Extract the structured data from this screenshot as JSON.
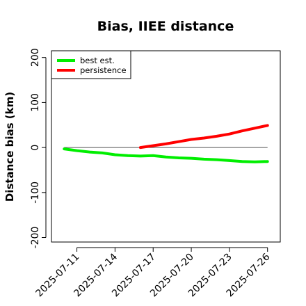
{
  "chart_data": {
    "type": "line",
    "title": "Bias, IIEE distance",
    "xlabel": "",
    "ylabel": "Distance bias (km)",
    "xlim": [
      "2025-07-09",
      "2025-07-27"
    ],
    "ylim": [
      -210,
      215
    ],
    "x_ticks": [
      "2025-07-11",
      "2025-07-14",
      "2025-07-17",
      "2025-07-20",
      "2025-07-23",
      "2025-07-26"
    ],
    "y_ticks": [
      -200,
      -100,
      0,
      100,
      200
    ],
    "reference_line": 0,
    "legend_position": "top-left",
    "series": [
      {
        "name": "best est.",
        "color": "#00ee00",
        "points": [
          [
            "2025-07-10",
            -3
          ],
          [
            "2025-07-11",
            -7
          ],
          [
            "2025-07-12",
            -10
          ],
          [
            "2025-07-13",
            -12
          ],
          [
            "2025-07-14",
            -16
          ],
          [
            "2025-07-15",
            -18
          ],
          [
            "2025-07-16",
            -19
          ],
          [
            "2025-07-17",
            -18
          ],
          [
            "2025-07-18",
            -21
          ],
          [
            "2025-07-19",
            -23
          ],
          [
            "2025-07-20",
            -24
          ],
          [
            "2025-07-21",
            -26
          ],
          [
            "2025-07-22",
            -27
          ],
          [
            "2025-07-23",
            -29
          ],
          [
            "2025-07-24",
            -31
          ],
          [
            "2025-07-25",
            -32
          ],
          [
            "2025-07-26",
            -31
          ]
        ]
      },
      {
        "name": "persistence",
        "color": "#ff0000",
        "points": [
          [
            "2025-07-16",
            0
          ],
          [
            "2025-07-17",
            4
          ],
          [
            "2025-07-18",
            8
          ],
          [
            "2025-07-19",
            13
          ],
          [
            "2025-07-20",
            18
          ],
          [
            "2025-07-21",
            21
          ],
          [
            "2025-07-22",
            25
          ],
          [
            "2025-07-23",
            30
          ],
          [
            "2025-07-24",
            37
          ],
          [
            "2025-07-25",
            43
          ],
          [
            "2025-07-26",
            49
          ]
        ]
      }
    ]
  }
}
